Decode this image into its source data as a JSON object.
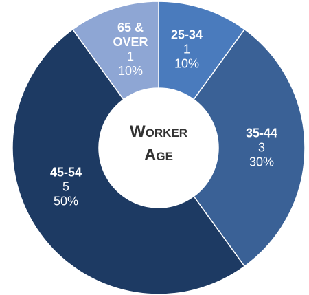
{
  "chart_data": {
    "type": "donut",
    "title": "Worker Age",
    "categories": [
      "25-34",
      "35-44",
      "45-54",
      "65 & OVER"
    ],
    "values": [
      1,
      3,
      5,
      1
    ],
    "percent_labels": [
      "10%",
      "30%",
      "50%",
      "10%"
    ],
    "colors": [
      "#4a7bbd",
      "#3a6196",
      "#1d3a63",
      "#8ea6d4"
    ]
  }
}
